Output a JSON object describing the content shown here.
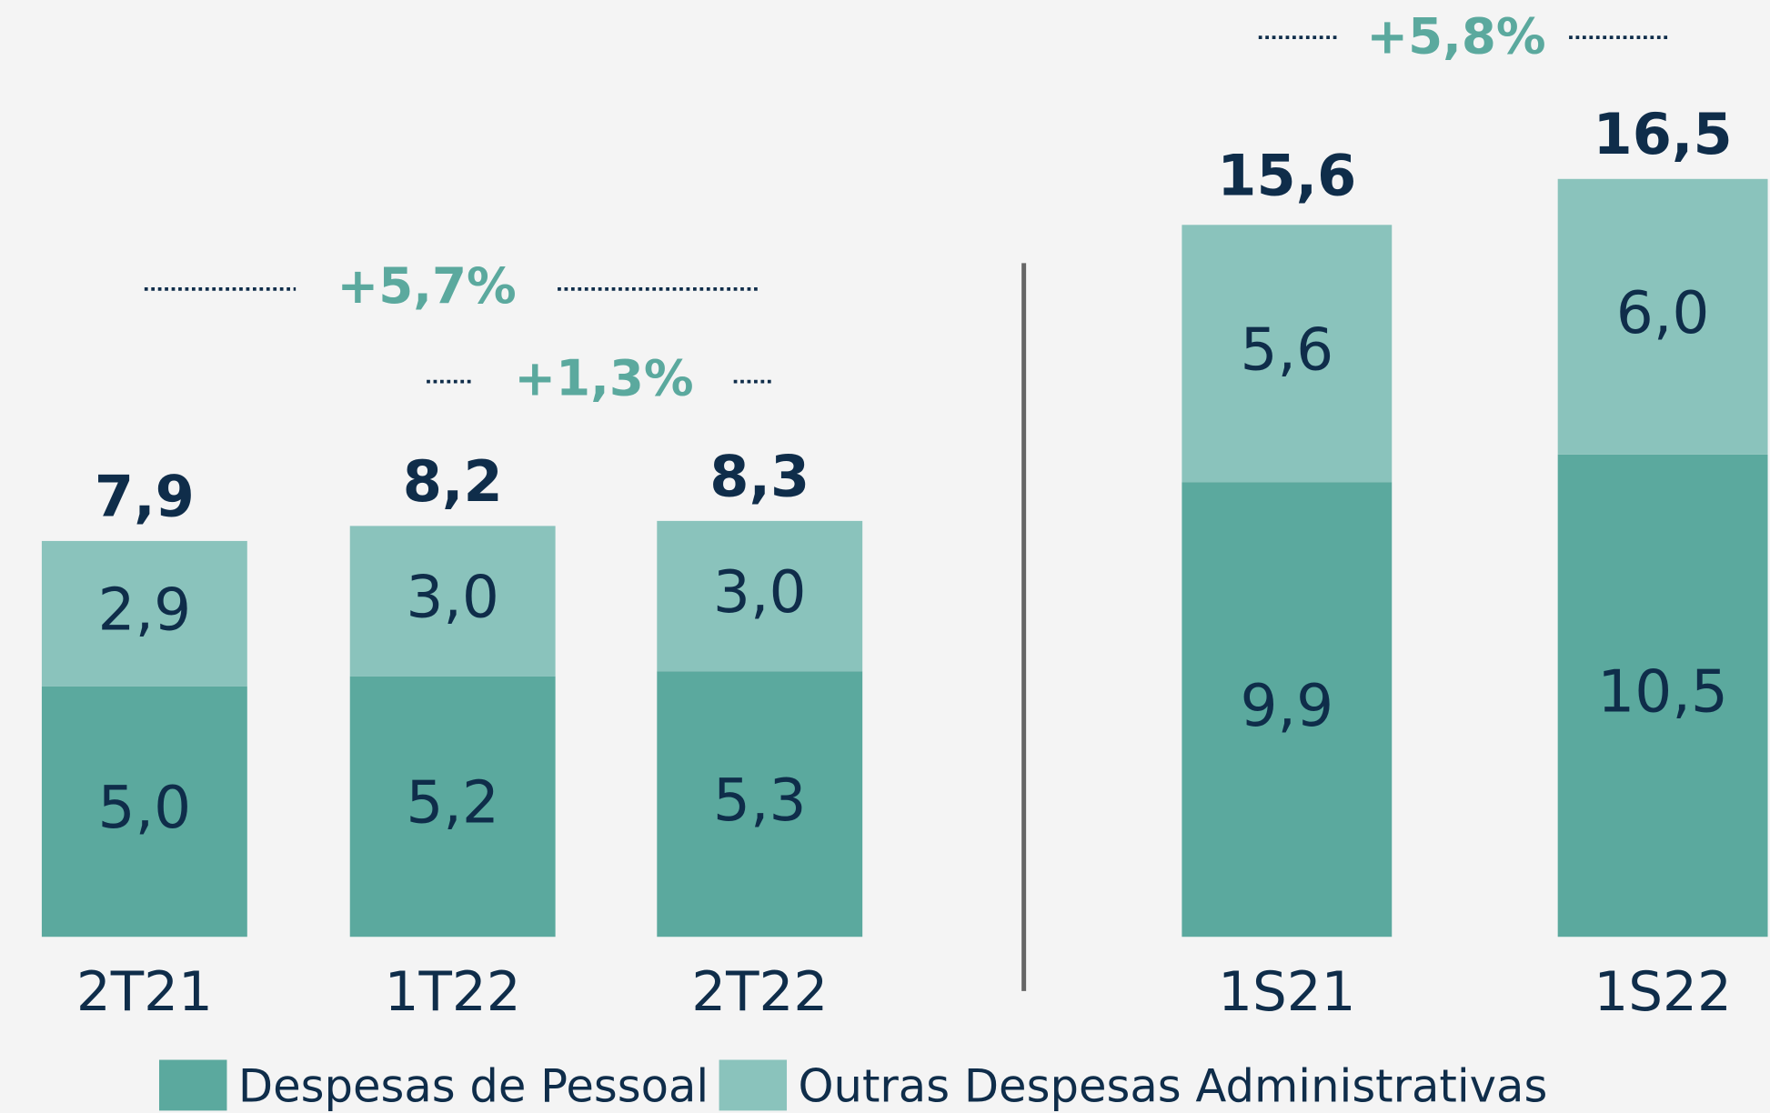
{
  "chart_data": [
    {
      "type": "stacked-bar",
      "categories": [
        "2T21",
        "1T22",
        "2T22"
      ],
      "series": [
        {
          "name": "Despesas de Pessoal",
          "color": "#5ba99e",
          "values": [
            5.0,
            5.2,
            5.3
          ],
          "value_labels": [
            "5,0",
            "5,2",
            "5,3"
          ]
        },
        {
          "name": "Outras Despesas Administrativas",
          "color": "#8ac3bc",
          "values": [
            2.9,
            3.0,
            3.0
          ],
          "value_labels": [
            "2,9",
            "3,0",
            "3,0"
          ]
        }
      ],
      "totals": [
        7.9,
        8.2,
        8.3
      ],
      "total_labels": [
        "7,9",
        "8,2",
        "8,3"
      ],
      "annotations": [
        "+5,7%",
        "+1,3%"
      ],
      "ylim": [
        0,
        10
      ]
    },
    {
      "type": "stacked-bar",
      "categories": [
        "1S21",
        "1S22"
      ],
      "series": [
        {
          "color": "#5ba99e",
          "values": [
            9.9,
            10.5
          ],
          "value_labels": [
            "9,9",
            "10,5"
          ]
        },
        {
          "color": "#8ac3bc",
          "values": [
            5.6,
            6.0
          ],
          "value_labels": [
            "5,6",
            "6,0"
          ]
        }
      ],
      "totals": [
        15.6,
        16.5
      ],
      "total_labels": [
        "15,6",
        "16,5"
      ],
      "annotations": [
        "+5,8%"
      ],
      "ylim": [
        0,
        20
      ]
    }
  ]
}
